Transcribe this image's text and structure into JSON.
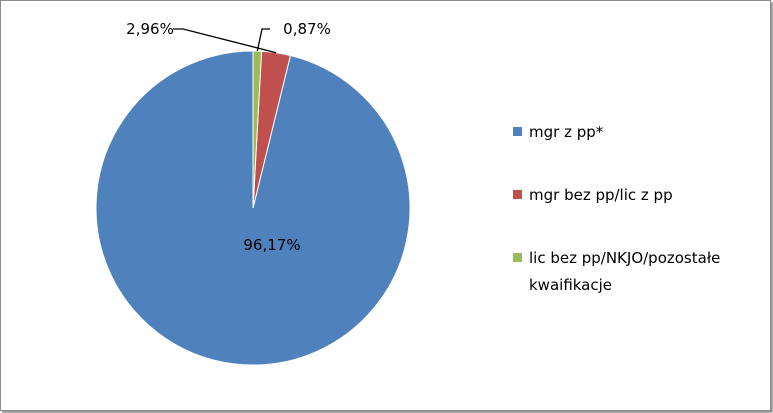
{
  "chart_data": {
    "type": "pie",
    "categories": [
      "mgr z pp*",
      "mgr bez pp/lic z pp",
      "lic bez pp/NKJO/pozostałe kwaifikacje"
    ],
    "values": [
      96.17,
      2.96,
      0.87
    ],
    "data_labels": [
      "96,17%",
      "2,96%",
      "0,87%"
    ],
    "colors": [
      "#4f81bd",
      "#c0504d",
      "#9bbb59"
    ],
    "legend_position": "right",
    "legend": [
      {
        "lines": [
          "mgr z pp*"
        ]
      },
      {
        "lines": [
          "mgr bez pp/lic z pp"
        ]
      },
      {
        "lines": [
          "lic bez pp/NKJO/pozostałe",
          "kwaifikacje"
        ]
      }
    ]
  }
}
